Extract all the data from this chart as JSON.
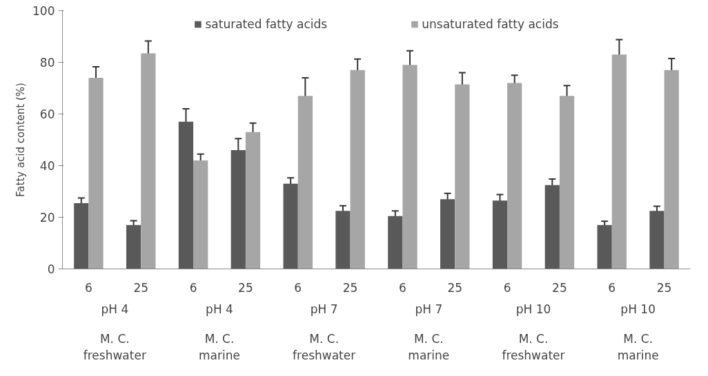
{
  "chart_data": {
    "type": "bar",
    "ylabel": "Fatty acid content (%)",
    "categories": [
      "6",
      "25",
      "6",
      "25",
      "6",
      "25",
      "6",
      "25",
      "6",
      "25",
      "6",
      "25"
    ],
    "series": [
      {
        "name": "saturated fatty acids",
        "color": "#595959",
        "values": [
          25.5,
          17,
          57,
          46,
          33,
          22.5,
          20.5,
          27,
          26.5,
          32.5,
          17,
          22.5
        ],
        "errors": [
          2,
          1.7,
          5,
          4.5,
          2.3,
          2,
          2,
          2.3,
          2.3,
          2.3,
          1.5,
          1.8
        ]
      },
      {
        "name": "unsaturated fatty acids",
        "color": "#a6a6a6",
        "values": [
          74,
          83.5,
          42,
          53,
          67,
          77,
          79,
          71.5,
          72,
          67,
          83,
          77
        ],
        "errors": [
          4.3,
          4.8,
          2.5,
          3.5,
          7,
          4.3,
          5.5,
          4.5,
          3,
          4,
          5.8,
          4.5
        ]
      }
    ],
    "annotations": [
      "pH 4",
      "pH 4",
      "pH 7",
      "pH 7",
      "pH 10",
      "pH 10",
      "M. C.\nfreshwater",
      "M. C.\nmarine",
      "M. C.\nfreshwater",
      "M. C.\nmarine",
      "M. C.\nfreshwater",
      "M. C.\nmarine"
    ],
    "ylim": [
      0,
      100
    ],
    "yticks": [
      0,
      20,
      40,
      60,
      80,
      100
    ],
    "grid": false,
    "legend": "top"
  }
}
